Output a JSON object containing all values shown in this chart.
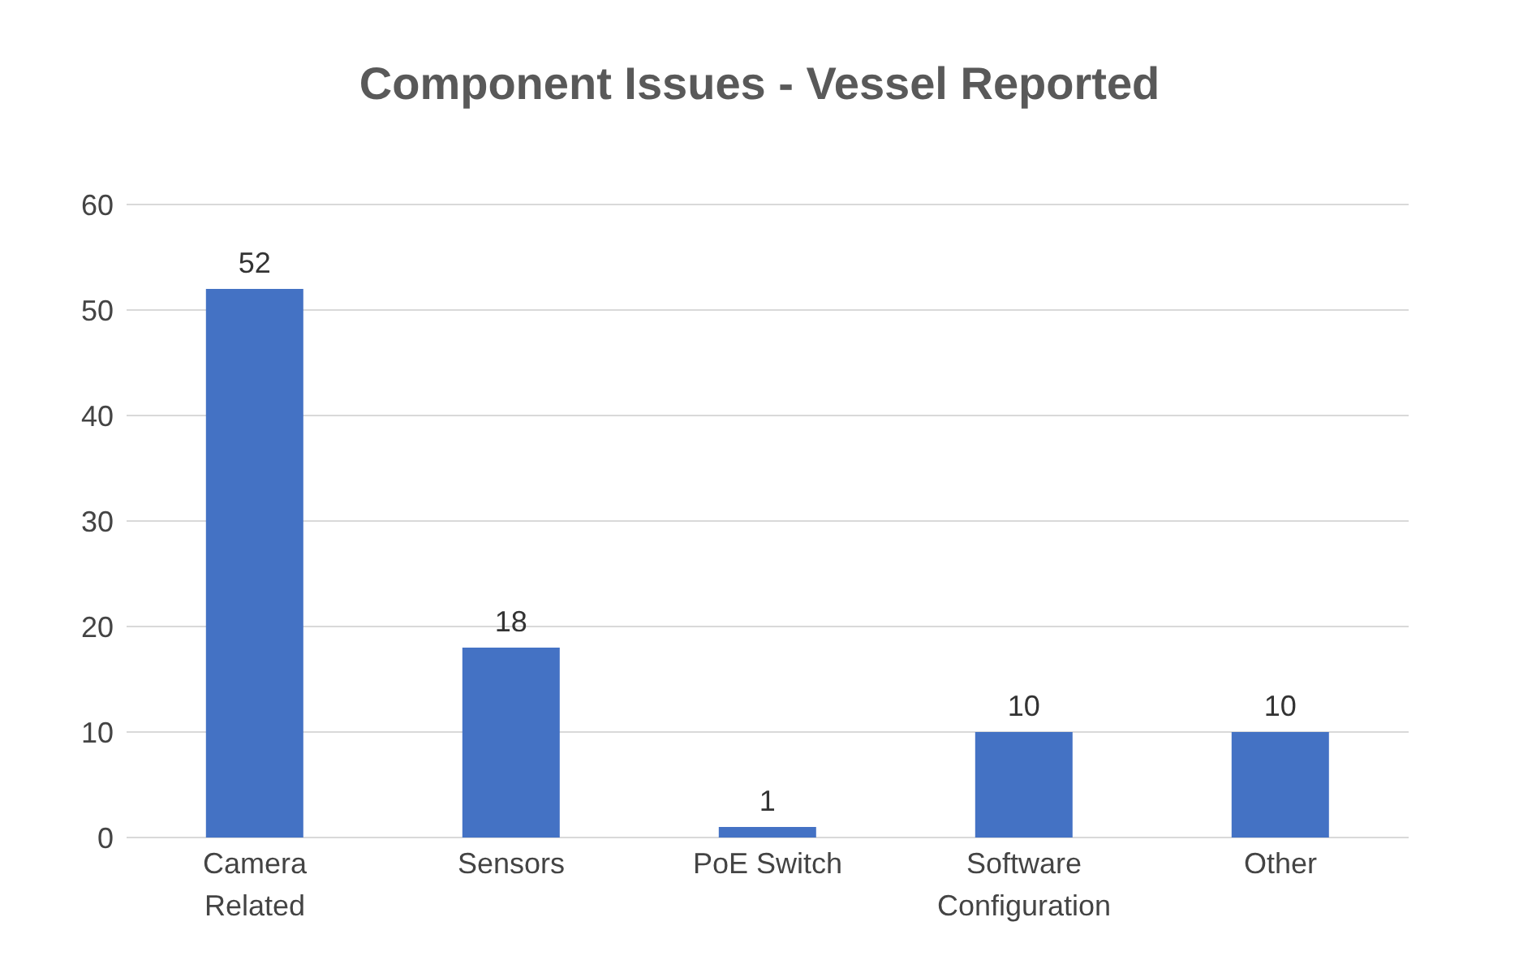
{
  "chart_data": {
    "type": "bar",
    "title": "Component Issues - Vessel Reported",
    "categories": [
      "Camera Related",
      "Sensors",
      "PoE Switch",
      "Software Configuration",
      "Other"
    ],
    "values": [
      52,
      18,
      1,
      10,
      10
    ],
    "color": "#4472c4",
    "ylim": [
      0,
      60
    ],
    "yticks": [
      0,
      10,
      20,
      30,
      40,
      50,
      60
    ],
    "grid": "y",
    "data_labels": true,
    "legend": false
  }
}
